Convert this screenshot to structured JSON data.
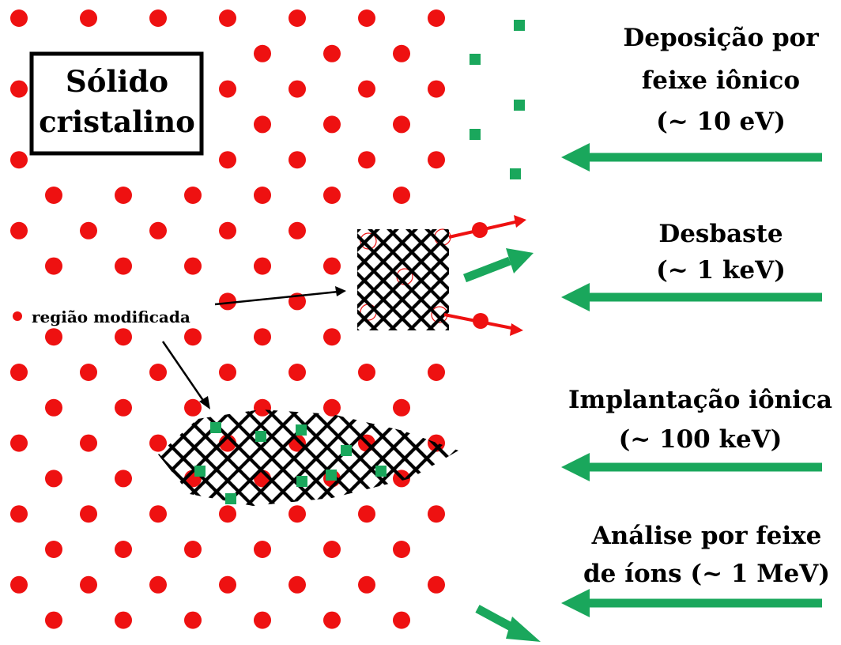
{
  "colors": {
    "atom": "#ee1111",
    "ion": "#1aa75c",
    "lattice_damage": "#000000",
    "sputter_arrow": "#ee1111",
    "beam_arrow": "#1aa75c"
  },
  "solid_label": {
    "line1": "Sólido",
    "line2": "cristalino"
  },
  "modified_region_label": "região modificada",
  "processes": [
    {
      "line1": "Deposição por",
      "line2": "feixe iônico",
      "line3": "(~ 10 eV)"
    },
    {
      "line1": "Desbaste",
      "line2": "(~ 1 keV)"
    },
    {
      "line1": "Implantação iônica",
      "line2": "(~ 100 keV)"
    },
    {
      "line1": "Análise por feixe",
      "line2": "de íons (~ 1 MeV)"
    }
  ]
}
